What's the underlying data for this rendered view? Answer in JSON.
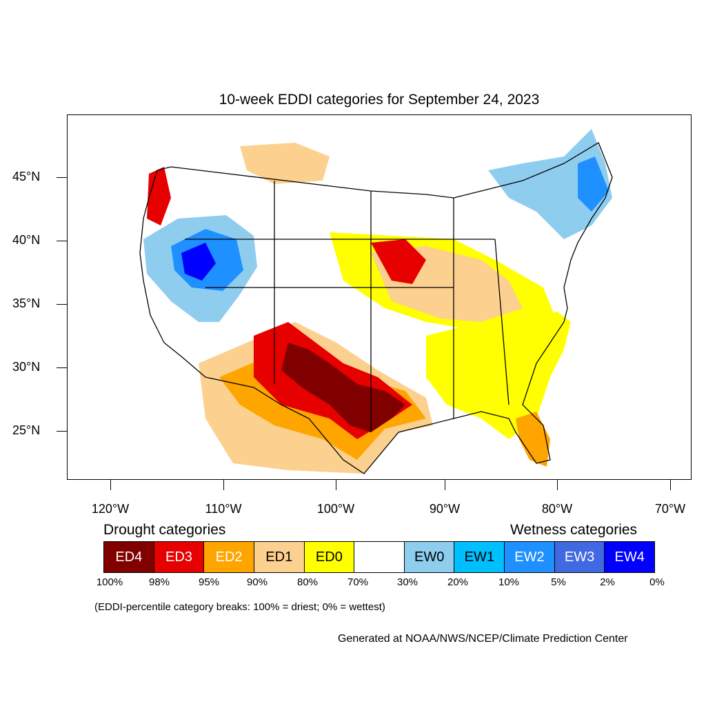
{
  "title": "10-week EDDI categories for September 24, 2023",
  "map": {
    "lat_labels": [
      "45°N",
      "40°N",
      "35°N",
      "30°N",
      "25°N"
    ],
    "lon_labels": [
      "120°W",
      "110°W",
      "100°W",
      "90°W",
      "80°W",
      "70°W"
    ]
  },
  "legend": {
    "drought_heading": "Drought categories",
    "wetness_heading": "Wetness categories",
    "categories": [
      {
        "label": "ED4",
        "color": "#800000",
        "text_color": "#ffffff"
      },
      {
        "label": "ED3",
        "color": "#e60000",
        "text_color": "#ffffff"
      },
      {
        "label": "ED2",
        "color": "#ffa500",
        "text_color": "#ffffff"
      },
      {
        "label": "ED1",
        "color": "#fcd08e",
        "text_color": "#000000"
      },
      {
        "label": "ED0",
        "color": "#ffff00",
        "text_color": "#000000"
      },
      {
        "label": "",
        "color": "#ffffff",
        "text_color": "#000000"
      },
      {
        "label": "EW0",
        "color": "#8fcdef",
        "text_color": "#000000"
      },
      {
        "label": "EW1",
        "color": "#00bfff",
        "text_color": "#000000"
      },
      {
        "label": "EW2",
        "color": "#1e90ff",
        "text_color": "#ffffff"
      },
      {
        "label": "EW3",
        "color": "#4169e1",
        "text_color": "#ffffff"
      },
      {
        "label": "EW4",
        "color": "#0000ff",
        "text_color": "#ffffff"
      }
    ],
    "percent_breaks": [
      "100%",
      "98%",
      "95%",
      "90%",
      "80%",
      "70%",
      "30%",
      "20%",
      "10%",
      "5%",
      "2%",
      "0%"
    ],
    "note": "(EDDI-percentile category breaks: 100% = driest; 0% = wettest)"
  },
  "credit": "Generated at NOAA/NWS/NCEP/Climate Prediction Center"
}
